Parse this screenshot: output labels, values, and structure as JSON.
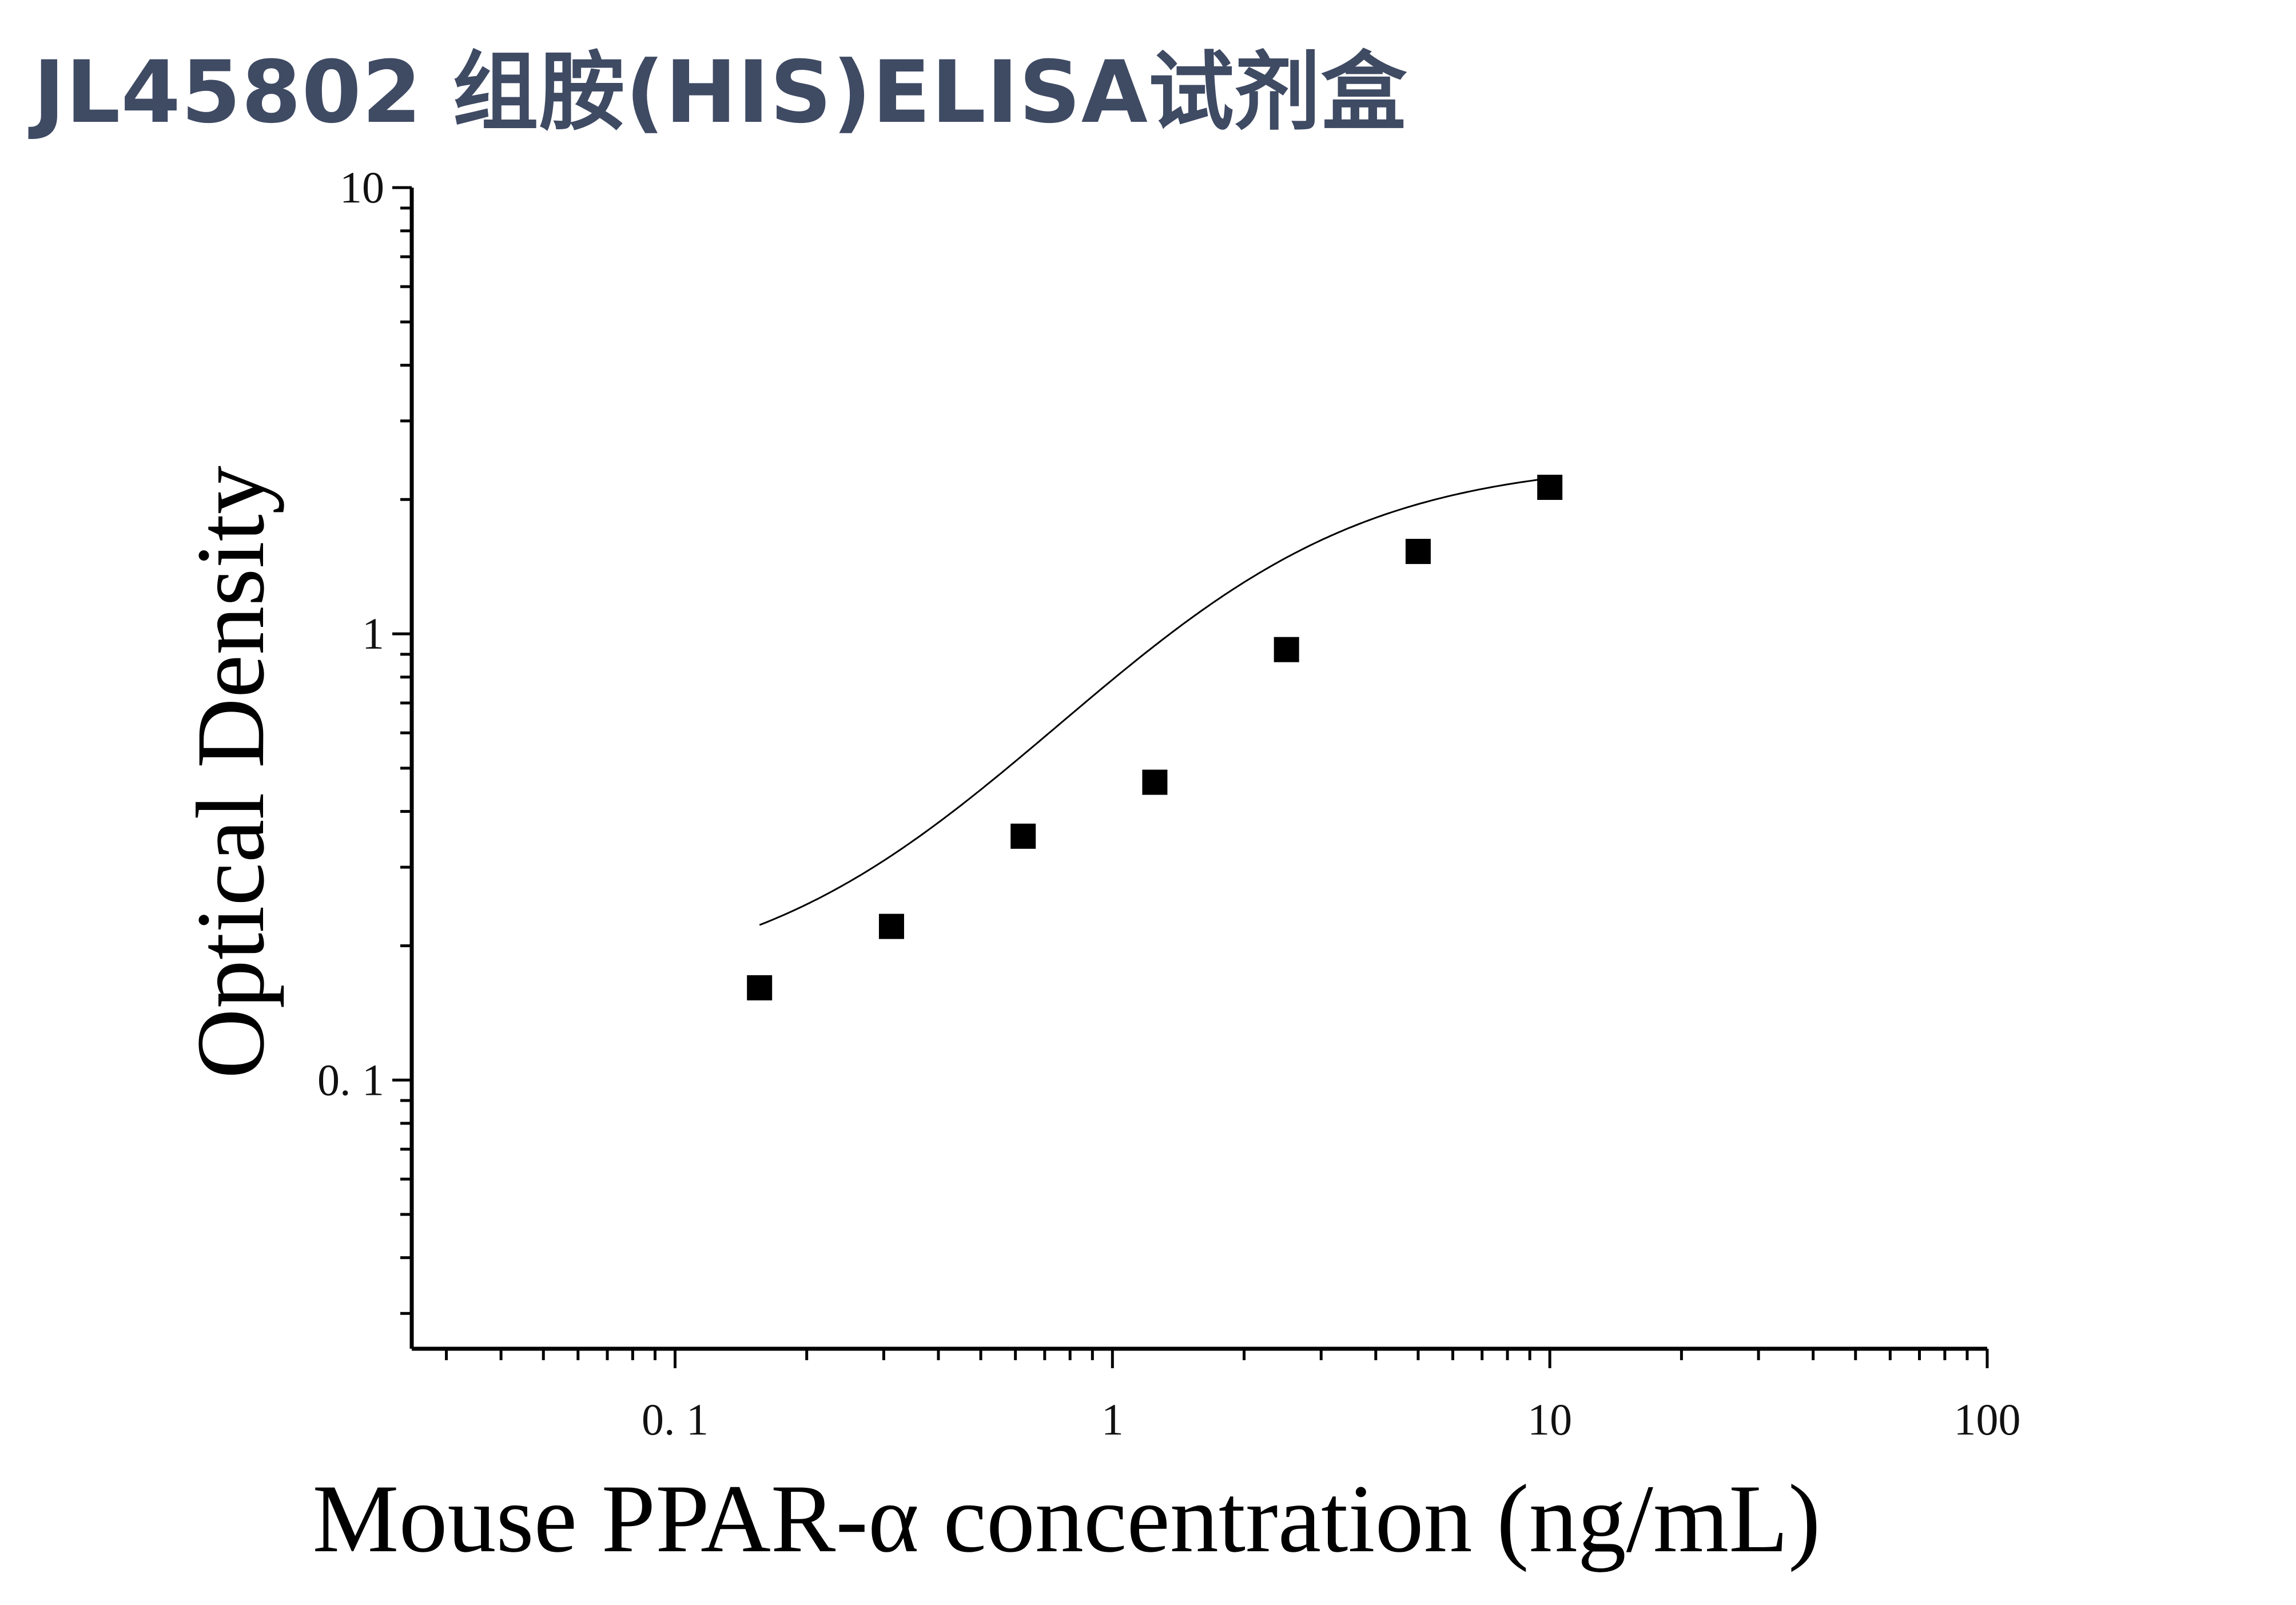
{
  "title": "JL45802 组胺(HIS)ELISA试剂盒",
  "chart_data": {
    "type": "scatter",
    "xlabel": "Mouse PPAR-α concentration (ng/mL)",
    "ylabel": "Optical Density",
    "x_scale": "log",
    "y_scale": "log",
    "xlim": [
      0.025,
      100
    ],
    "ylim": [
      0.025,
      10
    ],
    "x_ticks": [
      {
        "value": 0.1,
        "label": "0. 1"
      },
      {
        "value": 1,
        "label": "1"
      },
      {
        "value": 10,
        "label": "10"
      },
      {
        "value": 100,
        "label": "100"
      }
    ],
    "y_ticks": [
      {
        "value": 0.1,
        "label": "0. 1"
      },
      {
        "value": 1,
        "label": "1"
      },
      {
        "value": 10,
        "label": "10"
      }
    ],
    "grid": false,
    "series": [
      {
        "marker": "square",
        "x": [
          0.156,
          0.3125,
          0.625,
          1.25,
          2.5,
          5,
          10
        ],
        "y": [
          0.161,
          0.221,
          0.352,
          0.465,
          0.922,
          1.53,
          2.13
        ]
      }
    ],
    "fit_curve": {
      "model": "4PL",
      "A": 0.16,
      "D": 2.45,
      "C": 2.0,
      "B": 1.4,
      "x_range": [
        0.156,
        10
      ]
    },
    "colors": {
      "marks": "#000000",
      "title": "#3f4a63"
    }
  }
}
